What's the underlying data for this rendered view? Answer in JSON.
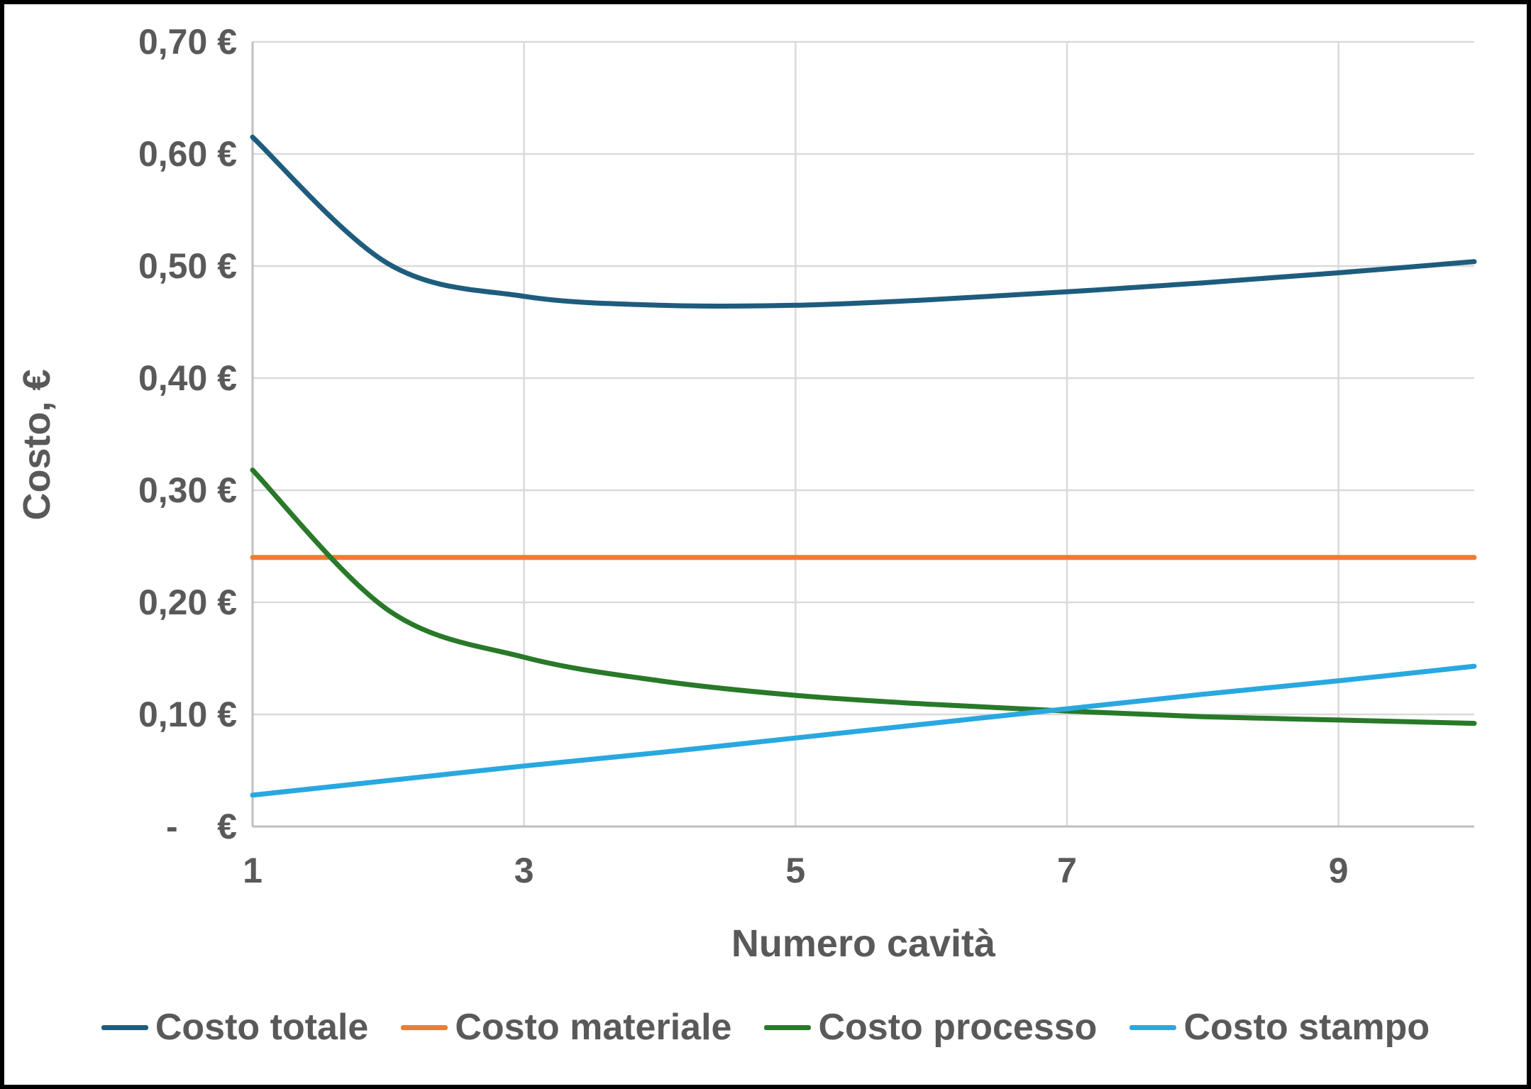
{
  "styles": {
    "text_color": "#595959",
    "gridline_color": "#D9D9D9",
    "axis_line_color": "#BFBFBF",
    "background": "#FFFFFF",
    "frame_color": "#000000"
  },
  "chart_data": {
    "type": "line",
    "title": "",
    "xlabel": "Numero cavità",
    "ylabel": "Costo, €",
    "x": [
      1,
      2,
      3,
      4,
      5,
      6,
      7,
      8,
      9,
      10
    ],
    "xlim": [
      1,
      10
    ],
    "x_ticks_shown": [
      1,
      3,
      5,
      7,
      9
    ],
    "x_gridlines": [
      3,
      5,
      7,
      9
    ],
    "ylim": [
      0,
      0.7
    ],
    "ytick_step": 0.1,
    "ytick_labels_top_to_bottom": [
      "0,70 €",
      "0,60 €",
      "0,50 €",
      "0,40 €",
      "0,30 €",
      "0,20 €",
      "0,10 €",
      "-    €"
    ],
    "grid": true,
    "legend_position": "bottom",
    "series": [
      {
        "name": "Costo totale",
        "color": "#1E5C7D",
        "values": [
          0.615,
          0.502,
          0.473,
          0.465,
          0.465,
          0.47,
          0.477,
          0.485,
          0.494,
          0.504
        ]
      },
      {
        "name": "Costo materiale",
        "color": "#ED7D31",
        "values": [
          0.24,
          0.24,
          0.24,
          0.24,
          0.24,
          0.24,
          0.24,
          0.24,
          0.24,
          0.24
        ]
      },
      {
        "name": "Costo processo",
        "color": "#287928",
        "values": [
          0.318,
          0.193,
          0.151,
          0.13,
          0.117,
          0.109,
          0.103,
          0.098,
          0.095,
          0.092
        ]
      },
      {
        "name": "Costo stampo",
        "color": "#29A8E0",
        "values": [
          0.028,
          0.041,
          0.054,
          0.066,
          0.079,
          0.092,
          0.105,
          0.118,
          0.13,
          0.143
        ]
      }
    ]
  }
}
